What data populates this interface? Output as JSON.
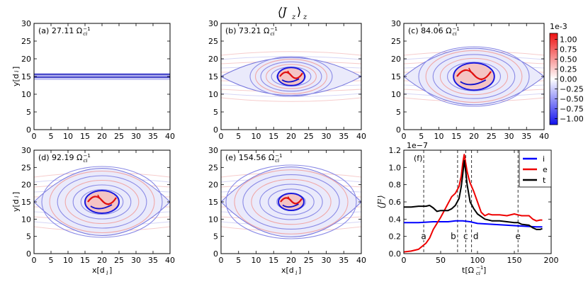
{
  "figure_title": "⟨J_z⟩_z",
  "figure_title_main": "⟨J",
  "figure_title_sub": "z",
  "figure_title_close": "⟩",
  "figure_title_sub2": "z",
  "colorbar": {
    "scale_label": "1e-3",
    "ticks": [
      "1.00",
      "0.75",
      "0.50",
      "0.25",
      "0.00",
      "−0.25",
      "−0.50",
      "−0.75",
      "−1.00"
    ],
    "tick_values": [
      1.0,
      0.75,
      0.5,
      0.25,
      0.0,
      -0.25,
      -0.5,
      -0.75,
      -1.0
    ],
    "range": [
      -1.15,
      1.15
    ],
    "colors": {
      "pos": "#ee1111",
      "neg": "#1111ee",
      "mid": "#ffffff"
    }
  },
  "panels": [
    {
      "label": "(a) 27.11 Ω",
      "unit": "ci",
      "exp": "−1",
      "shape": "sheet",
      "size": 0
    },
    {
      "label": "(b) 73.21 Ω",
      "unit": "ci",
      "exp": "−1",
      "shape": "island",
      "size": 1
    },
    {
      "label": "(c) 84.06 Ω",
      "unit": "ci",
      "exp": "−1",
      "shape": "island",
      "size": 2
    },
    {
      "label": "(d) 92.19 Ω",
      "unit": "ci",
      "exp": "−1",
      "shape": "island",
      "size": 3
    },
    {
      "label": "(e) 154.56 Ω",
      "unit": "ci",
      "exp": "−1",
      "shape": "island",
      "size": 4
    }
  ],
  "map_axes": {
    "xticks": [
      "0",
      "5",
      "10",
      "15",
      "20",
      "25",
      "30",
      "35",
      "40"
    ],
    "yticks": [
      "0",
      "5",
      "10",
      "15",
      "20",
      "25",
      "30"
    ],
    "xlabel": "x[d",
    "xlabel_sub": "i",
    "xlabel_close": "]",
    "ylabel": "y[d",
    "ylabel_sub": "i",
    "ylabel_close": "]",
    "xlim": [
      0,
      40
    ],
    "ylim": [
      0,
      30
    ]
  },
  "chart_data": {
    "type": "line",
    "panel_label": "(f)",
    "scale_label": "1e−7",
    "xlabel": "t[Ω",
    "xlabel_sub": "ci",
    "xlabel_exp": "−1",
    "xlabel_close": "]",
    "ylabel": "⟨J²⟩",
    "xlim": [
      0,
      200
    ],
    "ylim": [
      0,
      1.2
    ],
    "xticks": [
      "0",
      "50",
      "100",
      "150",
      "200"
    ],
    "yticks": [
      "0.0",
      "0.2",
      "0.4",
      "0.6",
      "0.8",
      "1.0",
      "1.2"
    ],
    "legend_position": "top-right",
    "series": [
      {
        "name": "i",
        "color": "#0000ff",
        "x": [
          0,
          20,
          40,
          60,
          70,
          80,
          90,
          100,
          120,
          140,
          160,
          180,
          188
        ],
        "y": [
          0.36,
          0.36,
          0.37,
          0.37,
          0.38,
          0.38,
          0.37,
          0.35,
          0.34,
          0.33,
          0.32,
          0.31,
          0.31
        ]
      },
      {
        "name": "e",
        "color": "#ee0000",
        "x": [
          0,
          10,
          20,
          30,
          35,
          40,
          45,
          50,
          55,
          60,
          65,
          70,
          75,
          78,
          80,
          82,
          84,
          86,
          88,
          90,
          95,
          100,
          105,
          110,
          115,
          120,
          130,
          140,
          150,
          155,
          160,
          170,
          175,
          180,
          185,
          188
        ],
        "y": [
          0.02,
          0.03,
          0.05,
          0.12,
          0.18,
          0.28,
          0.35,
          0.42,
          0.5,
          0.58,
          0.66,
          0.7,
          0.78,
          0.9,
          1.05,
          1.15,
          1.05,
          0.95,
          0.88,
          0.82,
          0.72,
          0.6,
          0.48,
          0.44,
          0.46,
          0.45,
          0.45,
          0.44,
          0.46,
          0.45,
          0.44,
          0.44,
          0.4,
          0.38,
          0.39,
          0.39
        ]
      },
      {
        "name": "t",
        "color": "#000000",
        "x": [
          0,
          10,
          20,
          30,
          35,
          40,
          45,
          50,
          55,
          60,
          65,
          70,
          75,
          78,
          80,
          82,
          84,
          86,
          88,
          90,
          95,
          100,
          105,
          110,
          120,
          130,
          140,
          150,
          155,
          160,
          170,
          175,
          180,
          185,
          188
        ],
        "y": [
          0.54,
          0.54,
          0.55,
          0.55,
          0.56,
          0.53,
          0.49,
          0.5,
          0.5,
          0.5,
          0.52,
          0.56,
          0.64,
          0.78,
          0.92,
          1.08,
          0.95,
          0.8,
          0.7,
          0.6,
          0.52,
          0.46,
          0.43,
          0.4,
          0.38,
          0.38,
          0.37,
          0.36,
          0.36,
          0.34,
          0.33,
          0.3,
          0.28,
          0.28,
          0.29
        ]
      }
    ],
    "vlines": [
      {
        "label": "a",
        "x": 27
      },
      {
        "label": "b",
        "x": 73
      },
      {
        "label": "c",
        "x": 84
      },
      {
        "label": "d",
        "x": 92
      },
      {
        "label": "e",
        "x": 155
      }
    ]
  }
}
